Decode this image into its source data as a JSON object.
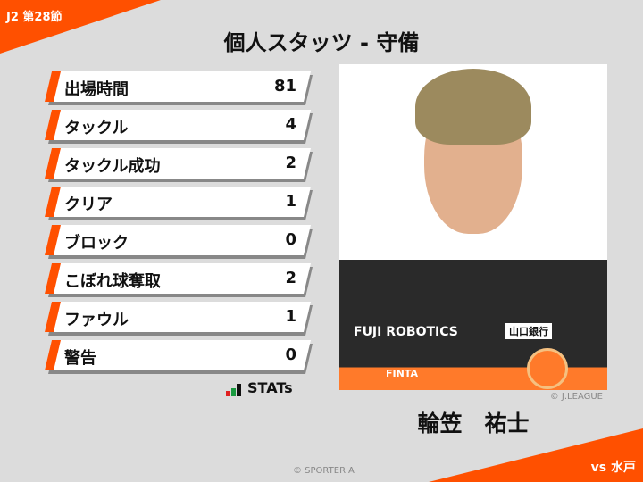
{
  "header": {
    "round": "J2 第28節",
    "title": "個人スタッツ - 守備"
  },
  "stats": [
    {
      "label": "出場時間",
      "value": "81"
    },
    {
      "label": "タックル",
      "value": "4"
    },
    {
      "label": "タックル成功",
      "value": "2"
    },
    {
      "label": "クリア",
      "value": "1"
    },
    {
      "label": "ブロック",
      "value": "0"
    },
    {
      "label": "こぼれ球奪取",
      "value": "2"
    },
    {
      "label": "ファウル",
      "value": "1"
    },
    {
      "label": "警告",
      "value": "0"
    }
  ],
  "brand": {
    "stats_logo": "STATs"
  },
  "player": {
    "name": "輪笠　祐士",
    "photo_credit": "© J.LEAGUE",
    "shirt_sponsor": "FUJI ROBOTICS",
    "sleeve_sponsor": "山口銀行",
    "kit_maker": "FINTA"
  },
  "footer": {
    "credit": "© SPORTERIA",
    "opponent": "vs 水戸"
  },
  "colors": {
    "accent": "#ff5000",
    "background": "#dcdcdc"
  }
}
